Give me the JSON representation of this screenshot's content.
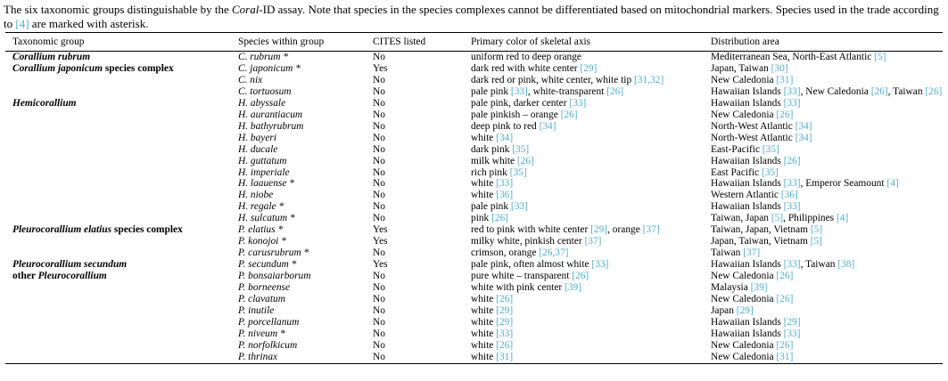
{
  "colors": {
    "link": "#51aed1",
    "text": "#000000",
    "background": "#ffffff"
  },
  "caption": {
    "segments": [
      {
        "text": "The six taxonomic groups distinguishable by the "
      },
      {
        "text": "Coral",
        "style": "italic"
      },
      {
        "text": "-ID assay. Note that species in the species complexes cannot be differentiated based on mitochondrial markers. Species used in the trade according to "
      },
      {
        "text": "[4]",
        "style": "ref"
      },
      {
        "text": " are marked with asterisk."
      }
    ]
  },
  "table": {
    "columns": [
      "Taxonomic group",
      "Species within group",
      "CITES listed",
      "Primary color of skeletal axis",
      "Distribution area"
    ],
    "rows": [
      {
        "group": {
          "prefix": "",
          "name": "Corallium rubrum",
          "suffix": ""
        },
        "species": "C. rubrum *",
        "cites": "No",
        "color": "uniform red to deep orange",
        "distribution": "Mediterranean Sea, North-East Atlantic [5]"
      },
      {
        "group": {
          "prefix": "",
          "name": "Corallium japonicum",
          "suffix": " species complex"
        },
        "species": "C. japonicum *",
        "cites": "Yes",
        "color": "dark red with white center [29]",
        "distribution": "Japan, Taiwan [30]"
      },
      {
        "group": null,
        "species": "C. nix",
        "cites": "No",
        "color": "dark red or pink, white center, white tip [31,32]",
        "distribution": "New Caledonia [31]"
      },
      {
        "group": null,
        "species": "C. tortuosum",
        "cites": "No",
        "color": "pale pink [33], white-transparent [26]",
        "distribution": "Hawaiian Islands [33], New Caledonia [26], Taiwan [26]"
      },
      {
        "group": {
          "prefix": "",
          "name": "Hemicorallium",
          "suffix": ""
        },
        "species": "H. abyssale",
        "cites": "No",
        "color": "pale pink, darker center [33]",
        "distribution": "Hawaiian Islands [33]"
      },
      {
        "group": null,
        "species": "H. aurantiacum",
        "cites": "No",
        "color": "pale pinkish – orange [26]",
        "distribution": "New Caledonia [26]"
      },
      {
        "group": null,
        "species": "H. bathyrubrum",
        "cites": "No",
        "color": "deep pink to red [34]",
        "distribution": "North-West Atlantic [34]"
      },
      {
        "group": null,
        "species": "H. bayeri",
        "cites": "No",
        "color": "white [34]",
        "distribution": "North-West Atlantic [34]"
      },
      {
        "group": null,
        "species": "H. ducale",
        "cites": "No",
        "color": "dark pink [35]",
        "distribution": "East-Pacific [35]"
      },
      {
        "group": null,
        "species": "H. guttatum",
        "cites": "No",
        "color": "milk white [26]",
        "distribution": "Hawaiian Islands [26]"
      },
      {
        "group": null,
        "species": "H. imperiale",
        "cites": "No",
        "color": "rich pink [35]",
        "distribution": "East Pacific [35]"
      },
      {
        "group": null,
        "species": "H. laauense *",
        "cites": "No",
        "color": "white [33]",
        "distribution": "Hawaiian Islands [33], Emperor Seamount [4]"
      },
      {
        "group": null,
        "species": "H. niobe",
        "cites": "No",
        "color": "white [36]",
        "distribution": "Western Atlantic [36]"
      },
      {
        "group": null,
        "species": "H. regale *",
        "cites": "No",
        "color": "pale pink [33]",
        "distribution": "Hawaiian Islands [33]"
      },
      {
        "group": null,
        "species": "H. sulcatum *",
        "cites": "No",
        "color": "pink [26]",
        "distribution": "Taiwan, Japan [5], Philippines [4]"
      },
      {
        "group": {
          "prefix": "",
          "name": "Pleurocorallium elatius",
          "suffix": " species complex"
        },
        "species": "P. elatius *",
        "cites": "Yes",
        "color": "red to pink with white center [29], orange [37]",
        "distribution": "Taiwan, Japan, Vietnam [5]"
      },
      {
        "group": null,
        "species": "P. konojoi *",
        "cites": "Yes",
        "color": "milky white, pinkish center [37]",
        "distribution": "Japan, Taiwan, Vietnam [5]"
      },
      {
        "group": null,
        "species": "P. carusrubrum *",
        "cites": "No",
        "color": "crimson, orange [26,37]",
        "distribution": "Taiwan [37]"
      },
      {
        "group": {
          "prefix": "",
          "name": "Pleurocorallium secundum",
          "suffix": ""
        },
        "species": "P. secundum *",
        "cites": "Yes",
        "color": "pale pink, often almost white [33]",
        "distribution": "Hawaiian Islands [33], Taiwan [38]"
      },
      {
        "group": {
          "prefix": "other ",
          "name": "Pleurocorallium",
          "suffix": ""
        },
        "species": "P. bonsaiarborum",
        "cites": "No",
        "color": "pure white – transparent [26]",
        "distribution": "New Caledonia [26]"
      },
      {
        "group": null,
        "species": "P. borneense",
        "cites": "No",
        "color": "white with pink center [39]",
        "distribution": "Malaysia [39]"
      },
      {
        "group": null,
        "species": "P. clavatum",
        "cites": "No",
        "color": "white [26]",
        "distribution": "New Caledonia [26]"
      },
      {
        "group": null,
        "species": "P. inutile",
        "cites": "No",
        "color": "white [29]",
        "distribution": "Japan [29]"
      },
      {
        "group": null,
        "species": "P. porcellanum",
        "cites": "No",
        "color": "white [29]",
        "distribution": "Hawaiian Islands [29]"
      },
      {
        "group": null,
        "species": "P. niveum *",
        "cites": "No",
        "color": "white [33]",
        "distribution": "Hawaiian Islands [33]"
      },
      {
        "group": null,
        "species": "P. norfolkicum",
        "cites": "No",
        "color": "white [26]",
        "distribution": "New Caledonia [26]"
      },
      {
        "group": null,
        "species": "P. thrinax",
        "cites": "No",
        "color": "white [31]",
        "distribution": "New Caledonia [31]"
      }
    ]
  }
}
